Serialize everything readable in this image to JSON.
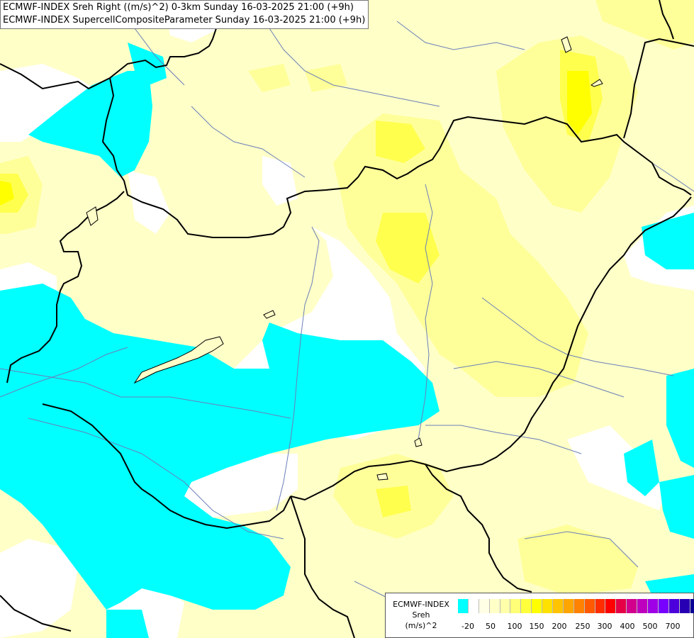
{
  "header": {
    "line1": "ECMWF-INDEX Sreh Right ((m/s)^2) 0-3km Sunday 16-03-2025 21:00 (+9h)",
    "line2": "ECMWF-INDEX SupercellCompositeParameter Sunday 16-03-2025 21:00 (+9h)"
  },
  "colors": {
    "neg": "#00ffff",
    "c0": "#ffffc8",
    "c25": "#ffff9a",
    "c50": "#ffff4e",
    "c75": "#ffff00",
    "border": "#000000",
    "river": "#6a7fb8"
  },
  "legend": {
    "line1": "ECMWF-INDEX",
    "line2": "Sreh",
    "line3": "(m/s)^2",
    "swatches": [
      "#00ffff",
      "#ffffff",
      "#ffffe6",
      "#ffffc8",
      "#ffffaa",
      "#ffff78",
      "#ffff3c",
      "#ffff00",
      "#ffe100",
      "#ffc300",
      "#ffa500",
      "#ff8200",
      "#ff5a00",
      "#ff2d00",
      "#ff0000",
      "#e60046",
      "#d2008c",
      "#be00be",
      "#a000e6",
      "#7800ff",
      "#4b00dc",
      "#2800b4",
      "#0a0096",
      "#000078"
    ],
    "ticks": [
      "-20",
      "50",
      "100",
      "150",
      "200",
      "250",
      "300",
      "400",
      "500",
      "700"
    ]
  }
}
